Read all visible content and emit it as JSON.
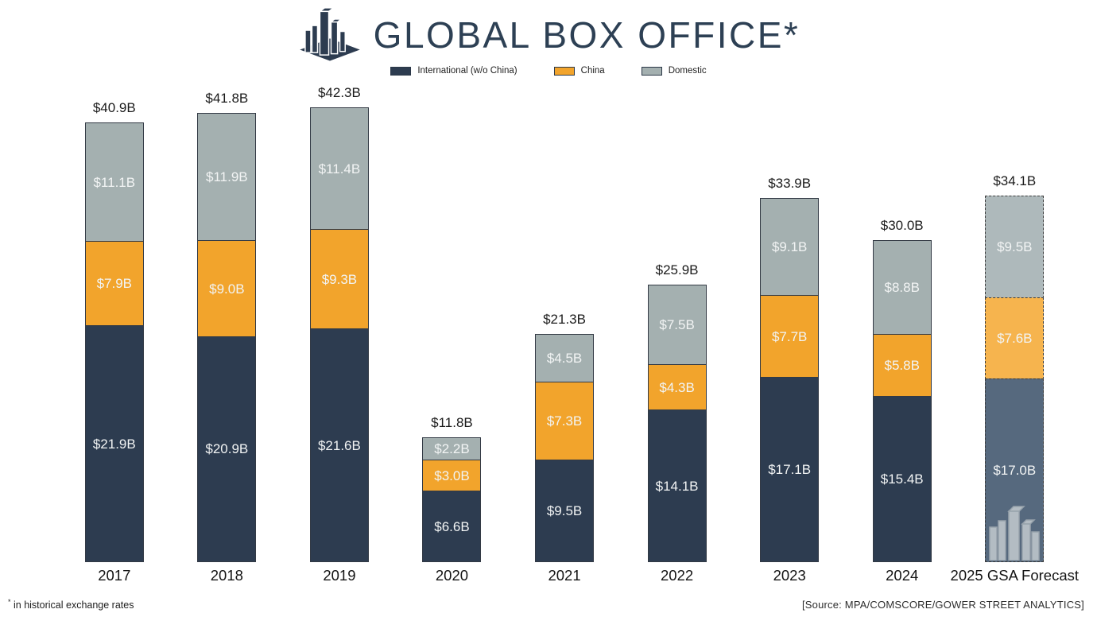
{
  "header": {
    "title": "GLOBAL BOX OFFICE*"
  },
  "legend": {
    "items": [
      {
        "key": "international",
        "label": "International (w/o China)",
        "color": "#2d3c50"
      },
      {
        "key": "china",
        "label": "China",
        "color": "#f2a42c"
      },
      {
        "key": "domestic",
        "label": "Domestic",
        "color": "#a4b0b0"
      }
    ]
  },
  "chart_data": {
    "type": "bar",
    "stacked": true,
    "title": "GLOBAL BOX OFFICE*",
    "unit": "USD billions",
    "ylim": [
      0,
      45
    ],
    "grid": false,
    "legend_position": "top",
    "categories": [
      "2017",
      "2018",
      "2019",
      "2020",
      "2021",
      "2022",
      "2023",
      "2024",
      "2025 GSA Forecast"
    ],
    "totals": [
      "$40.9B",
      "$41.8B",
      "$42.3B",
      "$11.8B",
      "$21.3B",
      "$25.9B",
      "$33.9B",
      "$30.0B",
      "$34.1B"
    ],
    "total_values": [
      40.9,
      41.8,
      42.3,
      11.8,
      21.3,
      25.9,
      33.9,
      30.0,
      34.1
    ],
    "forecast_index": 8,
    "series": [
      {
        "key": "international",
        "name": "International (w/o China)",
        "color": "#2d3c50",
        "forecast_color": "#56697e",
        "values": [
          21.9,
          20.9,
          21.6,
          6.6,
          9.5,
          14.1,
          17.1,
          15.4,
          17.0
        ],
        "labels": [
          "$21.9B",
          "$20.9B",
          "$21.6B",
          "$6.6B",
          "$9.5B",
          "$14.1B",
          "$17.1B",
          "$15.4B",
          "$17.0B"
        ]
      },
      {
        "key": "china",
        "name": "China",
        "color": "#f2a42c",
        "forecast_color": "#f6b44e",
        "values": [
          7.9,
          9.0,
          9.3,
          3.0,
          7.3,
          4.3,
          7.7,
          5.8,
          7.6
        ],
        "labels": [
          "$7.9B",
          "$9.0B",
          "$9.3B",
          "$3.0B",
          "$7.3B",
          "$4.3B",
          "$7.7B",
          "$5.8B",
          "$7.6B"
        ]
      },
      {
        "key": "domestic",
        "name": "Domestic",
        "color": "#a4b0b0",
        "forecast_color": "#aeb9bb",
        "values": [
          11.1,
          11.9,
          11.4,
          2.2,
          4.5,
          7.5,
          9.1,
          8.8,
          9.5
        ],
        "labels": [
          "$11.1B",
          "$11.9B",
          "$11.4B",
          "$2.2B",
          "$4.5B",
          "$7.5B",
          "$9.1B",
          "$8.8B",
          "$9.5B"
        ]
      }
    ]
  },
  "footer": {
    "note_mark": "*",
    "note_text": " in historical exchange rates",
    "source": "[Source: MPA/COMSCORE/GOWER STREET ANALYTICS]"
  }
}
